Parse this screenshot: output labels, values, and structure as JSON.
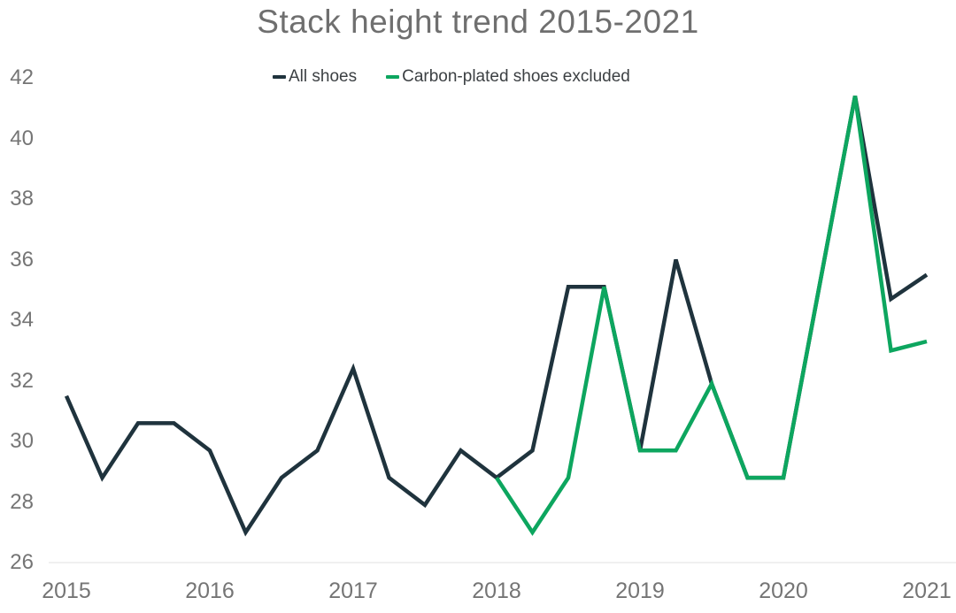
{
  "page": {
    "background": "#ffffff"
  },
  "legend": {
    "items": [
      {
        "label": "All shoes",
        "color": "#1f333d"
      },
      {
        "label": "Carbon-plated shoes excluded",
        "color": "#0da65f"
      }
    ]
  },
  "chart_data": {
    "type": "line",
    "title": "Stack height trend 2015-2021",
    "xlabel": "",
    "ylabel": "",
    "xlim": [
      2015,
      2021
    ],
    "ylim": [
      26,
      42
    ],
    "x_ticks": [
      2015,
      2016,
      2017,
      2018,
      2019,
      2020,
      2021
    ],
    "y_ticks": [
      26,
      28,
      30,
      32,
      34,
      36,
      38,
      40,
      42
    ],
    "grid": "bottom baseline only",
    "legend_position": "top",
    "baseline_color": "#ececec",
    "tick_label_color": "#757575",
    "title_color": "#6f6f6f",
    "line_width": 4.5,
    "series": [
      {
        "name": "All shoes",
        "color": "#1f333d",
        "x": [
          2015.0,
          2015.25,
          2015.5,
          2015.75,
          2016.0,
          2016.25,
          2016.5,
          2016.75,
          2017.0,
          2017.25,
          2017.5,
          2017.75,
          2018.0,
          2018.25,
          2018.5,
          2018.75,
          2019.0,
          2019.25,
          2019.5,
          2019.75,
          2020.0,
          2020.25,
          2020.5,
          2020.75,
          2021.0
        ],
        "values": [
          31.5,
          28.8,
          30.6,
          30.6,
          29.7,
          27.0,
          28.8,
          29.7,
          32.4,
          28.8,
          27.9,
          29.7,
          28.8,
          29.7,
          35.1,
          35.1,
          29.7,
          36.0,
          31.9,
          28.8,
          28.8,
          35.1,
          41.4,
          34.7,
          35.5
        ]
      },
      {
        "name": "Carbon-plated shoes excluded",
        "color": "#0da65f",
        "x": [
          2018.0,
          2018.25,
          2018.5,
          2018.75,
          2019.0,
          2019.25,
          2019.5,
          2019.75,
          2020.0,
          2020.25,
          2020.5,
          2020.75,
          2021.0
        ],
        "values": [
          28.8,
          27.0,
          28.8,
          35.1,
          29.7,
          29.7,
          31.9,
          28.8,
          28.8,
          35.1,
          41.4,
          33.0,
          33.3
        ]
      }
    ]
  }
}
